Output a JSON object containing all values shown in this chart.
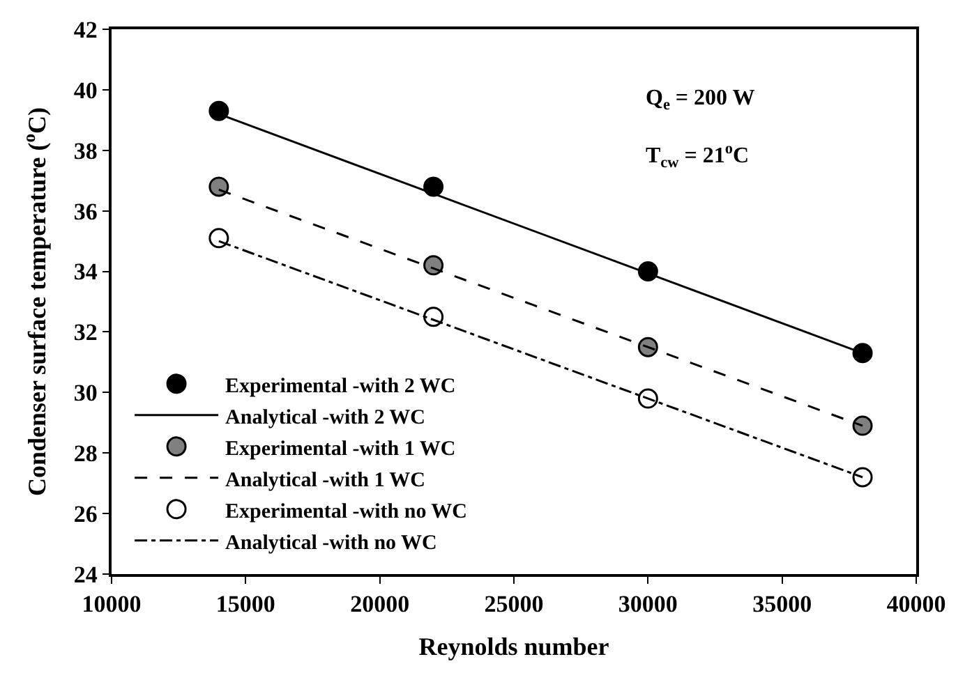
{
  "chart_data": {
    "type": "scatter",
    "xlabel": "Reynolds number",
    "ylabel": "Condenser surface temperature ($^{o}$C)",
    "xlim": [
      10000,
      40000
    ],
    "xticks": [
      10000,
      15000,
      20000,
      25000,
      30000,
      35000,
      40000
    ],
    "ylim": [
      24,
      42
    ],
    "yticks": [
      24,
      26,
      28,
      30,
      32,
      34,
      36,
      38,
      40,
      42
    ],
    "legend": "bottom left",
    "annotations": [
      "Q$_{e}$ = 200 W",
      "T$_{cw}$ = 21$^{o}$C"
    ],
    "series": [
      {
        "name": "Experimental -with 2 WC",
        "marker": "circle",
        "color": "#000000",
        "x": [
          14000,
          22000,
          30000,
          38000
        ],
        "values": [
          39.3,
          36.8,
          34.0,
          31.3
        ]
      },
      {
        "name": "Analytical -with 2 WC",
        "type": "line",
        "marker": "none",
        "line_style": "solid",
        "color": "#000000",
        "x": [
          14000,
          38000
        ],
        "values": [
          39.2,
          31.3
        ]
      },
      {
        "name": "Experimental -with 1 WC",
        "marker": "circle",
        "color": "#808080",
        "x": [
          14000,
          22000,
          30000,
          38000
        ],
        "values": [
          36.8,
          34.2,
          31.5,
          28.9
        ]
      },
      {
        "name": "Analytical -with 1 WC",
        "type": "line",
        "marker": "none",
        "line_style": "dashed",
        "color": "#000000",
        "x": [
          14000,
          38000
        ],
        "values": [
          36.7,
          28.9
        ]
      },
      {
        "name": "Experimental -with no WC",
        "marker": "circle",
        "color": "#ffffff",
        "x": [
          14000,
          22000,
          30000,
          38000
        ],
        "values": [
          35.1,
          32.5,
          29.8,
          27.2
        ]
      },
      {
        "name": "Analytical -with no WC",
        "type": "line",
        "marker": "none",
        "line_style": "dashdot",
        "color": "#000000",
        "x": [
          14000,
          38000
        ],
        "values": [
          35.0,
          27.2
        ]
      }
    ]
  }
}
